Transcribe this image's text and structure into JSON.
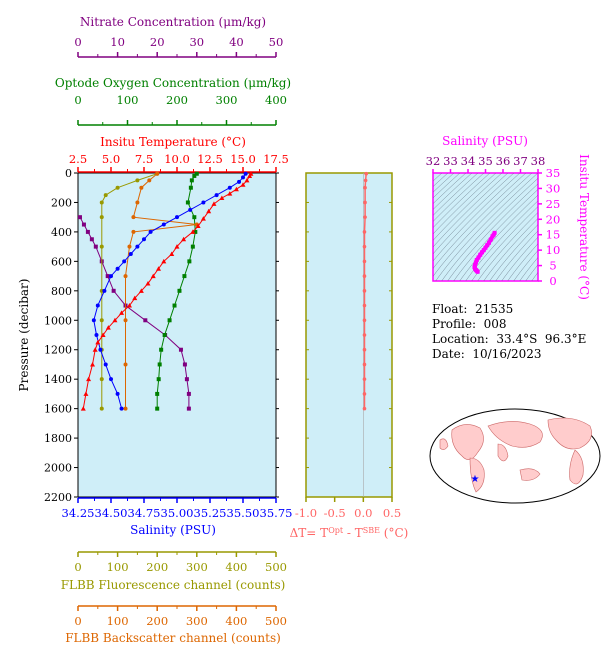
{
  "info": {
    "float": "Float:  21535",
    "profile": "Profile:  008",
    "location": "Location:  33.4°S  96.3°E",
    "date": "Date:  10/16/2023"
  },
  "colors": {
    "nitrate": "#800080",
    "oxygen": "#008000",
    "temperature": "#ff0000",
    "salinity": "#0000ff",
    "fluorescence": "#999900",
    "backscatter": "#dd6600",
    "tdiff": "#ff6666",
    "panel_bg": "#cfeef8",
    "ts_bg": "#cfeef8",
    "ts_accent": "#ff00ff"
  },
  "chart_data": [
    {
      "type": "line",
      "ylabel": "Pressure (decibar)",
      "ylim": [
        2200,
        0
      ],
      "yticks": [
        "0",
        "200",
        "400",
        "600",
        "800",
        "1000",
        "1200",
        "1400",
        "1600",
        "1800",
        "2000",
        "2200"
      ],
      "axes": {
        "nitrate": {
          "label": "Nitrate Concentration (μm/kg)",
          "range": [
            0,
            50
          ],
          "ticks": [
            "0",
            "10",
            "20",
            "30",
            "40",
            "50"
          ]
        },
        "oxygen": {
          "label": "Optode Oxygen Concentration (μm/kg)",
          "range": [
            0,
            400
          ],
          "ticks": [
            "0",
            "100",
            "200",
            "300",
            "400"
          ]
        },
        "temperature": {
          "label": "Insitu Temperature (°C)",
          "range": [
            2.5,
            17.5
          ],
          "ticks": [
            "2.5",
            "5.0",
            "7.5",
            "10.0",
            "12.5",
            "15.0",
            "17.5"
          ]
        },
        "salinity": {
          "label": "Salinity (PSU)",
          "range": [
            34.25,
            35.75
          ],
          "ticks": [
            "34.25",
            "34.50",
            "34.75",
            "35.00",
            "35.25",
            "35.50",
            "35.75"
          ]
        },
        "fluorescence": {
          "label": "FLBB Fluorescence channel (counts)",
          "range": [
            0,
            500
          ],
          "ticks": [
            "0",
            "100",
            "200",
            "300",
            "400",
            "500"
          ]
        },
        "backscatter": {
          "label": "FLBB Backscatter channel (counts)",
          "range": [
            0,
            500
          ],
          "ticks": [
            "0",
            "100",
            "200",
            "300",
            "400",
            "500"
          ]
        }
      },
      "series": {
        "temperature": [
          [
            15.6,
            5
          ],
          [
            15.5,
            20
          ],
          [
            15.3,
            50
          ],
          [
            15.0,
            80
          ],
          [
            14.5,
            110
          ],
          [
            14.0,
            140
          ],
          [
            13.4,
            170
          ],
          [
            12.8,
            210
          ],
          [
            12.4,
            260
          ],
          [
            12.0,
            310
          ],
          [
            11.6,
            360
          ],
          [
            11.2,
            400
          ],
          [
            10.5,
            450
          ],
          [
            10.0,
            500
          ],
          [
            9.6,
            550
          ],
          [
            9.0,
            600
          ],
          [
            8.6,
            650
          ],
          [
            8.2,
            700
          ],
          [
            7.8,
            750
          ],
          [
            7.3,
            800
          ],
          [
            6.8,
            850
          ],
          [
            6.4,
            900
          ],
          [
            5.8,
            950
          ],
          [
            5.3,
            1000
          ],
          [
            4.8,
            1050
          ],
          [
            4.4,
            1100
          ],
          [
            4.0,
            1150
          ],
          [
            3.8,
            1200
          ],
          [
            3.6,
            1300
          ],
          [
            3.3,
            1400
          ],
          [
            3.1,
            1500
          ],
          [
            2.9,
            1600
          ]
        ],
        "salinity": [
          [
            35.52,
            5
          ],
          [
            35.5,
            30
          ],
          [
            35.47,
            60
          ],
          [
            35.4,
            100
          ],
          [
            35.3,
            150
          ],
          [
            35.2,
            200
          ],
          [
            35.1,
            250
          ],
          [
            35.0,
            300
          ],
          [
            34.9,
            350
          ],
          [
            34.8,
            400
          ],
          [
            34.75,
            450
          ],
          [
            34.7,
            500
          ],
          [
            34.65,
            550
          ],
          [
            34.6,
            600
          ],
          [
            34.55,
            650
          ],
          [
            34.5,
            700
          ],
          [
            34.45,
            800
          ],
          [
            34.4,
            900
          ],
          [
            34.37,
            1000
          ],
          [
            34.39,
            1100
          ],
          [
            34.42,
            1200
          ],
          [
            34.46,
            1300
          ],
          [
            34.5,
            1400
          ],
          [
            34.55,
            1500
          ],
          [
            34.58,
            1600
          ]
        ],
        "oxygen": [
          [
            240,
            5
          ],
          [
            235,
            20
          ],
          [
            230,
            50
          ],
          [
            228,
            100
          ],
          [
            222,
            200
          ],
          [
            235,
            300
          ],
          [
            237,
            400
          ],
          [
            232,
            500
          ],
          [
            225,
            600
          ],
          [
            215,
            700
          ],
          [
            205,
            800
          ],
          [
            195,
            900
          ],
          [
            185,
            1000
          ],
          [
            175,
            1100
          ],
          [
            168,
            1200
          ],
          [
            165,
            1300
          ],
          [
            163,
            1400
          ],
          [
            160,
            1500
          ],
          [
            160,
            1600
          ]
        ],
        "nitrate": [
          [
            0.5,
            300
          ],
          [
            1.5,
            350
          ],
          [
            2.5,
            400
          ],
          [
            3.5,
            450
          ],
          [
            4.5,
            500
          ],
          [
            6,
            600
          ],
          [
            7.5,
            700
          ],
          [
            9,
            800
          ],
          [
            12,
            900
          ],
          [
            17,
            1000
          ],
          [
            22,
            1100
          ],
          [
            26,
            1200
          ],
          [
            27,
            1300
          ],
          [
            27.5,
            1400
          ],
          [
            28,
            1500
          ],
          [
            28,
            1600
          ]
        ],
        "fluorescence": [
          [
            200,
            5
          ],
          [
            150,
            50
          ],
          [
            100,
            100
          ],
          [
            70,
            150
          ],
          [
            60,
            200
          ],
          [
            60,
            300
          ],
          [
            60,
            500
          ],
          [
            60,
            800
          ],
          [
            60,
            1000
          ],
          [
            60,
            1200
          ],
          [
            60,
            1400
          ],
          [
            60,
            1600
          ]
        ],
        "backscatter": [
          [
            200,
            5
          ],
          [
            180,
            50
          ],
          [
            160,
            100
          ],
          [
            150,
            200
          ],
          [
            140,
            300
          ],
          [
            300,
            350
          ],
          [
            140,
            400
          ],
          [
            130,
            500
          ],
          [
            120,
            700
          ],
          [
            120,
            1000
          ],
          [
            120,
            1300
          ],
          [
            120,
            1600
          ]
        ]
      }
    },
    {
      "type": "line",
      "xlabel": "ΔT= T^Opt - T^SBE (°C)",
      "xlim": [
        -1.0,
        0.5
      ],
      "xticks": [
        "-1.0",
        "-0.5",
        "0.0",
        "0.5"
      ],
      "values": [
        [
          0.05,
          5
        ],
        [
          0.04,
          50
        ],
        [
          0.03,
          100
        ],
        [
          0.03,
          200
        ],
        [
          0.03,
          300
        ],
        [
          0.02,
          400
        ],
        [
          0.02,
          500
        ],
        [
          0.02,
          600
        ],
        [
          0.02,
          700
        ],
        [
          0.02,
          800
        ],
        [
          0.02,
          900
        ],
        [
          0.02,
          1000
        ],
        [
          0.02,
          1100
        ],
        [
          0.02,
          1200
        ],
        [
          0.02,
          1300
        ],
        [
          0.02,
          1400
        ],
        [
          0.02,
          1500
        ],
        [
          0.02,
          1600
        ]
      ]
    },
    {
      "type": "scatter",
      "xlabel": "Salinity (PSU)",
      "ylabel": "Insitu Temperature (°C)",
      "xlim": [
        32,
        38
      ],
      "ylim": [
        0,
        35
      ],
      "xticks": [
        "32",
        "33",
        "34",
        "35",
        "36",
        "37",
        "38"
      ],
      "yticks": [
        "0",
        "5",
        "10",
        "15",
        "20",
        "25",
        "30",
        "35"
      ],
      "values": [
        [
          35.52,
          15.6
        ],
        [
          35.47,
          15.0
        ],
        [
          35.4,
          14.5
        ],
        [
          35.3,
          13.4
        ],
        [
          35.2,
          12.4
        ],
        [
          35.1,
          11.6
        ],
        [
          35.0,
          10.8
        ],
        [
          34.9,
          10.0
        ],
        [
          34.8,
          9.3
        ],
        [
          34.7,
          8.5
        ],
        [
          34.6,
          7.6
        ],
        [
          34.5,
          6.8
        ],
        [
          34.45,
          6.0
        ],
        [
          34.4,
          5.2
        ],
        [
          34.37,
          4.5
        ],
        [
          34.4,
          4.0
        ],
        [
          34.45,
          3.6
        ],
        [
          34.5,
          3.3
        ],
        [
          34.55,
          3.0
        ]
      ]
    }
  ]
}
